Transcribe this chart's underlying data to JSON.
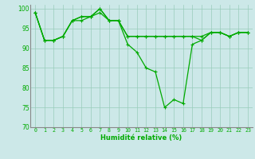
{
  "xlabel": "Humidité relative (%)",
  "bg_color": "#cce8e8",
  "grid_color": "#99ccbb",
  "line_color": "#00aa00",
  "xlim": [
    -0.5,
    23.5
  ],
  "ylim": [
    70,
    101
  ],
  "yticks": [
    70,
    75,
    80,
    85,
    90,
    95,
    100
  ],
  "xticks": [
    0,
    1,
    2,
    3,
    4,
    5,
    6,
    7,
    8,
    9,
    10,
    11,
    12,
    13,
    14,
    15,
    16,
    17,
    18,
    19,
    20,
    21,
    22,
    23
  ],
  "line1": [
    99,
    92,
    92,
    93,
    97,
    98,
    98,
    100,
    97,
    97,
    93,
    93,
    93,
    93,
    93,
    93,
    93,
    93,
    93,
    94,
    94,
    93,
    94,
    94
  ],
  "line2": [
    99,
    92,
    92,
    93,
    97,
    97,
    98,
    99,
    97,
    97,
    93,
    93,
    93,
    93,
    93,
    93,
    93,
    93,
    92,
    94,
    94,
    93,
    94,
    94
  ],
  "line3": [
    99,
    92,
    92,
    93,
    97,
    98,
    98,
    100,
    97,
    97,
    91,
    89,
    85,
    84,
    75,
    77,
    76,
    91,
    92,
    94,
    94,
    93,
    94,
    94
  ],
  "spine_color": "#888888",
  "xlabel_fontsize": 6.0,
  "xtick_fontsize": 4.8,
  "ytick_fontsize": 5.5,
  "linewidth": 0.9,
  "markersize": 2.5
}
